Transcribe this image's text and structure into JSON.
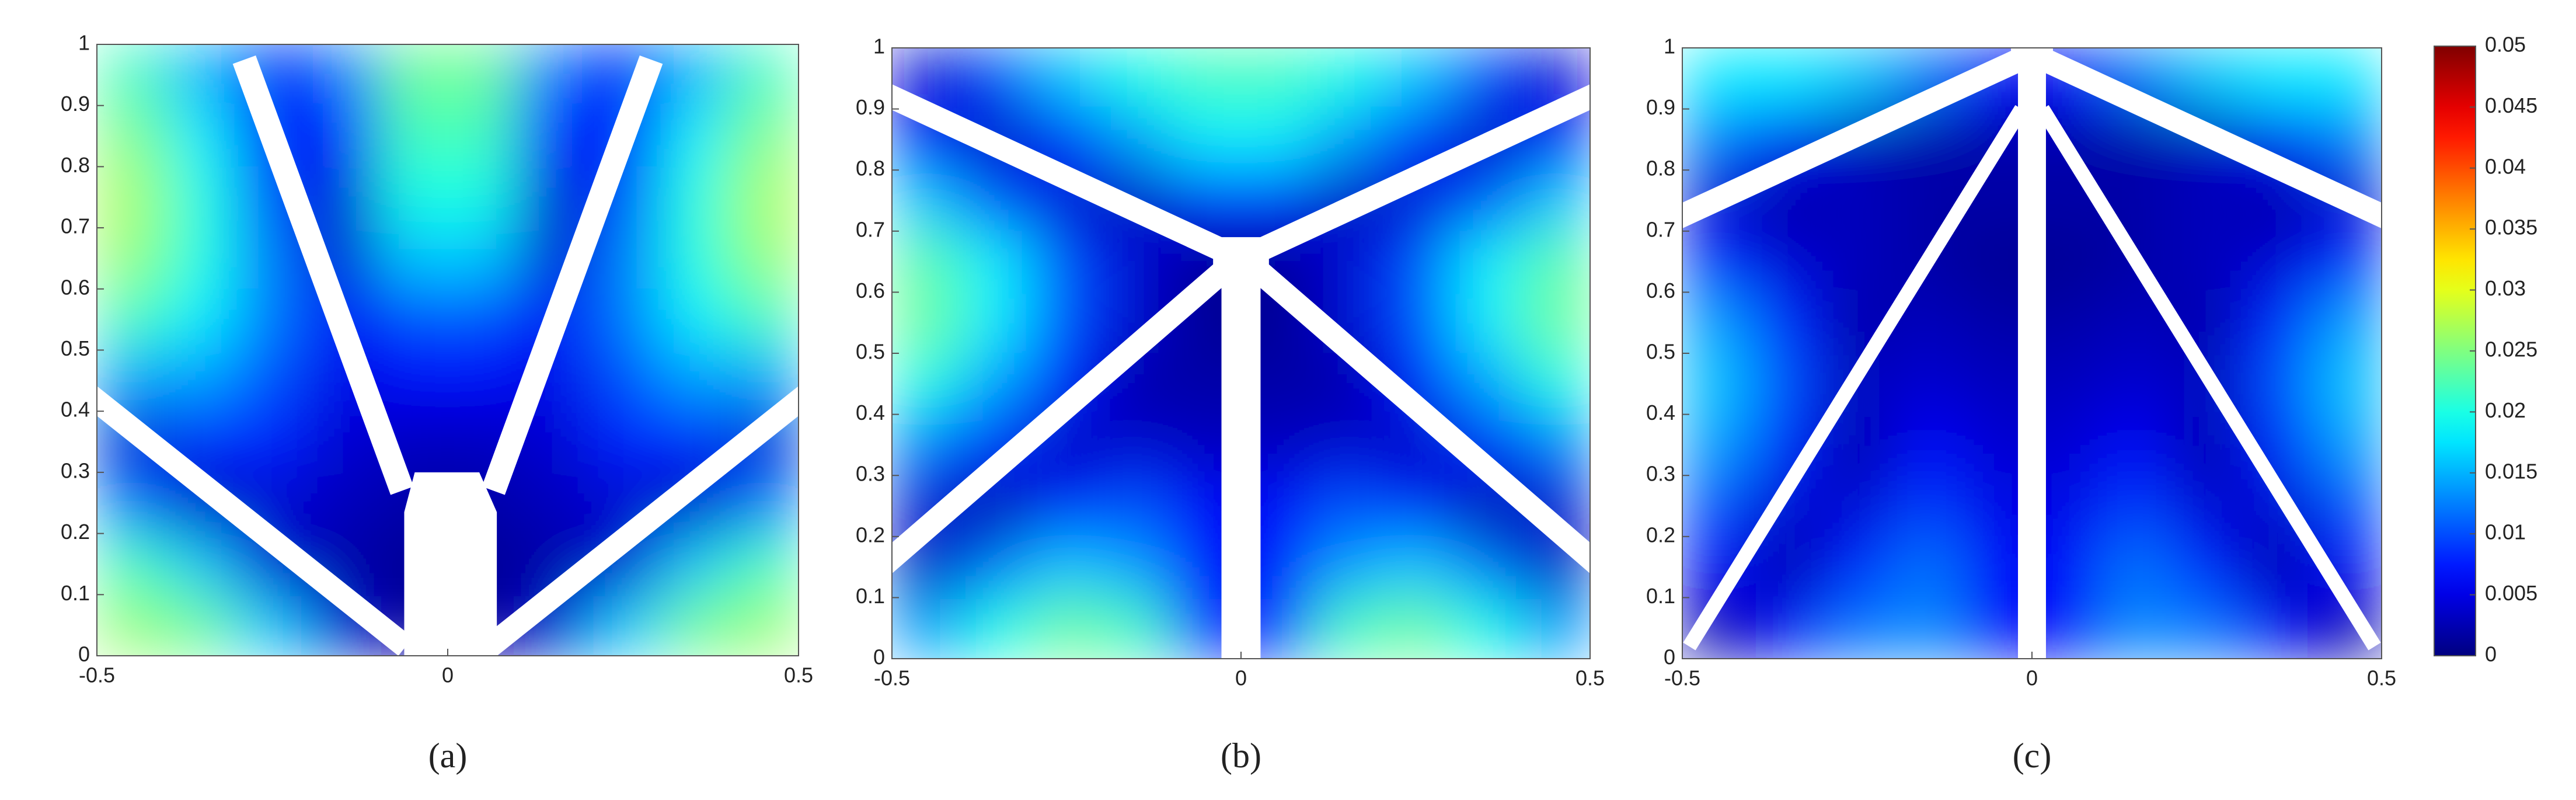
{
  "chart_data": [
    {
      "type": "heatmap",
      "label": "(a)",
      "colormap": "jet",
      "x": [
        -0.45,
        -0.35,
        -0.25,
        -0.15,
        -0.05,
        0.05,
        0.15,
        0.25,
        0.35,
        0.45
      ],
      "y": [
        0.95,
        0.85,
        0.75,
        0.65,
        0.55,
        0.45,
        0.35,
        0.25,
        0.15,
        0.05
      ],
      "values": [
        [
          0.022,
          0.015,
          0.006,
          0.012,
          0.024,
          0.024,
          0.012,
          0.006,
          0.015,
          0.022
        ],
        [
          0.025,
          0.018,
          0.006,
          0.008,
          0.022,
          0.022,
          0.008,
          0.006,
          0.018,
          0.025
        ],
        [
          0.027,
          0.02,
          0.01,
          0.004,
          0.02,
          0.02,
          0.004,
          0.01,
          0.02,
          0.027
        ],
        [
          0.026,
          0.02,
          0.012,
          0.004,
          0.016,
          0.016,
          0.004,
          0.012,
          0.02,
          0.026
        ],
        [
          0.022,
          0.018,
          0.012,
          0.006,
          0.01,
          0.01,
          0.006,
          0.012,
          0.018,
          0.022
        ],
        [
          0.014,
          0.014,
          0.01,
          0.005,
          0.006,
          0.006,
          0.005,
          0.01,
          0.014,
          0.014
        ],
        [
          0.004,
          0.008,
          0.008,
          0.004,
          0.003,
          0.003,
          0.004,
          0.008,
          0.008,
          0.004
        ],
        [
          0.012,
          0.003,
          0.004,
          0.003,
          0.002,
          0.002,
          0.003,
          0.004,
          0.003,
          0.012
        ],
        [
          0.022,
          0.016,
          0.004,
          0.002,
          0.001,
          0.001,
          0.002,
          0.004,
          0.016,
          0.022
        ],
        [
          0.026,
          0.024,
          0.016,
          0.004,
          0.001,
          0.001,
          0.004,
          0.016,
          0.024,
          0.026
        ]
      ],
      "xlim": [
        -0.5,
        0.5
      ],
      "xticks": [
        -0.5,
        0,
        0.5
      ],
      "ylim": [
        0,
        1
      ],
      "yticks": [
        0,
        0.1,
        0.2,
        0.3,
        0.4,
        0.5,
        0.6,
        0.7,
        0.8,
        0.9,
        1
      ]
    },
    {
      "type": "heatmap",
      "label": "(b)",
      "colormap": "jet",
      "x": [
        -0.45,
        -0.35,
        -0.25,
        -0.15,
        -0.05,
        0.05,
        0.15,
        0.25,
        0.35,
        0.45
      ],
      "y": [
        0.95,
        0.85,
        0.75,
        0.65,
        0.55,
        0.45,
        0.35,
        0.25,
        0.15,
        0.05
      ],
      "values": [
        [
          0.004,
          0.01,
          0.016,
          0.02,
          0.022,
          0.022,
          0.02,
          0.016,
          0.01,
          0.004
        ],
        [
          0.006,
          0.003,
          0.008,
          0.014,
          0.018,
          0.018,
          0.014,
          0.008,
          0.003,
          0.006
        ],
        [
          0.016,
          0.01,
          0.004,
          0.003,
          0.008,
          0.008,
          0.003,
          0.004,
          0.01,
          0.016
        ],
        [
          0.023,
          0.018,
          0.01,
          0.004,
          0.001,
          0.001,
          0.004,
          0.01,
          0.018,
          0.023
        ],
        [
          0.024,
          0.018,
          0.01,
          0.004,
          0.001,
          0.001,
          0.004,
          0.01,
          0.018,
          0.024
        ],
        [
          0.02,
          0.014,
          0.007,
          0.002,
          0.002,
          0.002,
          0.002,
          0.007,
          0.014,
          0.02
        ],
        [
          0.012,
          0.008,
          0.003,
          0.004,
          0.003,
          0.003,
          0.004,
          0.003,
          0.008,
          0.012
        ],
        [
          0.004,
          0.002,
          0.008,
          0.01,
          0.006,
          0.006,
          0.01,
          0.008,
          0.002,
          0.004
        ],
        [
          0.003,
          0.012,
          0.016,
          0.014,
          0.006,
          0.006,
          0.014,
          0.016,
          0.012,
          0.003
        ],
        [
          0.014,
          0.02,
          0.024,
          0.022,
          0.008,
          0.008,
          0.022,
          0.024,
          0.02,
          0.014
        ]
      ],
      "xlim": [
        -0.5,
        0.5
      ],
      "xticks": [
        -0.5,
        0,
        0.5
      ],
      "ylim": [
        0,
        1
      ],
      "yticks": [
        0,
        0.1,
        0.2,
        0.3,
        0.4,
        0.5,
        0.6,
        0.7,
        0.8,
        0.9,
        1
      ]
    },
    {
      "type": "heatmap",
      "label": "(c)",
      "colormap": "jet",
      "x": [
        -0.45,
        -0.35,
        -0.25,
        -0.15,
        -0.05,
        0.05,
        0.15,
        0.25,
        0.35,
        0.45
      ],
      "y": [
        0.95,
        0.85,
        0.75,
        0.65,
        0.55,
        0.45,
        0.35,
        0.25,
        0.15,
        0.05
      ],
      "values": [
        [
          0.018,
          0.018,
          0.016,
          0.012,
          0.006,
          0.006,
          0.012,
          0.016,
          0.018,
          0.018
        ],
        [
          0.012,
          0.006,
          0.003,
          0.002,
          0.002,
          0.002,
          0.002,
          0.003,
          0.006,
          0.012
        ],
        [
          0.004,
          0.002,
          0.003,
          0.002,
          0.002,
          0.002,
          0.002,
          0.003,
          0.002,
          0.004
        ],
        [
          0.008,
          0.004,
          0.003,
          0.002,
          0.001,
          0.001,
          0.002,
          0.003,
          0.004,
          0.008
        ],
        [
          0.014,
          0.008,
          0.002,
          0.003,
          0.002,
          0.002,
          0.003,
          0.002,
          0.008,
          0.014
        ],
        [
          0.016,
          0.01,
          0.003,
          0.004,
          0.003,
          0.003,
          0.004,
          0.003,
          0.01,
          0.016
        ],
        [
          0.014,
          0.008,
          0.002,
          0.006,
          0.004,
          0.004,
          0.006,
          0.002,
          0.008,
          0.014
        ],
        [
          0.01,
          0.004,
          0.004,
          0.009,
          0.005,
          0.005,
          0.009,
          0.004,
          0.004,
          0.01
        ],
        [
          0.006,
          0.002,
          0.008,
          0.012,
          0.006,
          0.006,
          0.012,
          0.008,
          0.002,
          0.006
        ],
        [
          0.002,
          0.006,
          0.012,
          0.013,
          0.006,
          0.006,
          0.013,
          0.012,
          0.006,
          0.002
        ]
      ],
      "xlim": [
        -0.5,
        0.5
      ],
      "xticks": [
        -0.5,
        0,
        0.5
      ],
      "ylim": [
        0,
        1
      ],
      "yticks": [
        0,
        0.1,
        0.2,
        0.3,
        0.4,
        0.5,
        0.6,
        0.7,
        0.8,
        0.9,
        1
      ]
    }
  ],
  "colorbar": {
    "colormap": "jet",
    "lim": [
      0,
      0.05
    ],
    "ticks": [
      0,
      0.005,
      0.01,
      0.015,
      0.02,
      0.025,
      0.03,
      0.035,
      0.04,
      0.045,
      0.05
    ]
  }
}
